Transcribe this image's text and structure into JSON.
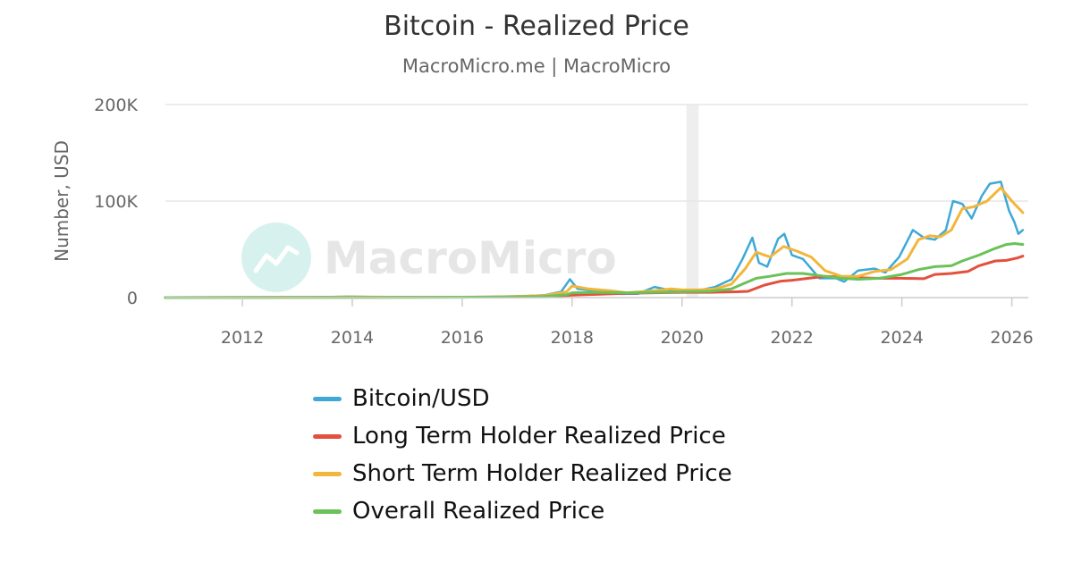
{
  "title": "Bitcoin - Realized Price",
  "subtitle": "MacroMicro.me | MacroMicro",
  "watermark": "MacroMicro",
  "colors": {
    "btc": "#3ea9d6",
    "lth": "#e3503e",
    "sth": "#f2b63c",
    "overall": "#6ac259",
    "grid": "#e6e6e6",
    "band": "#eeeeee"
  },
  "chart_data": {
    "type": "line",
    "ylabel": "Number, USD",
    "ylim": [
      0,
      200000
    ],
    "y_ticks": [
      0,
      100000,
      200000
    ],
    "y_tick_labels": [
      "0",
      "100K",
      "200K"
    ],
    "xlim": [
      2010.6,
      2026.3
    ],
    "x_ticks": [
      2012,
      2014,
      2016,
      2018,
      2020,
      2022,
      2024,
      2026
    ],
    "x_tick_labels": [
      "2012",
      "2014",
      "2016",
      "2018",
      "2020",
      "2022",
      "2024",
      "2026"
    ],
    "shaded_band": [
      2020.08,
      2020.3
    ],
    "series": [
      {
        "name": "Bitcoin/USD",
        "key": "btc",
        "points": [
          [
            2010.6,
            0
          ],
          [
            2013.3,
            200
          ],
          [
            2013.9,
            1000
          ],
          [
            2014.5,
            600
          ],
          [
            2015.5,
            250
          ],
          [
            2016.5,
            600
          ],
          [
            2017.0,
            1000
          ],
          [
            2017.5,
            2500
          ],
          [
            2017.8,
            6000
          ],
          [
            2017.96,
            19000
          ],
          [
            2018.1,
            9000
          ],
          [
            2018.5,
            6500
          ],
          [
            2018.9,
            3800
          ],
          [
            2019.2,
            4000
          ],
          [
            2019.5,
            11000
          ],
          [
            2019.75,
            8000
          ],
          [
            2020.0,
            7500
          ],
          [
            2020.2,
            6000
          ],
          [
            2020.6,
            11000
          ],
          [
            2020.9,
            19000
          ],
          [
            2021.1,
            40000
          ],
          [
            2021.28,
            62000
          ],
          [
            2021.4,
            36000
          ],
          [
            2021.55,
            32000
          ],
          [
            2021.75,
            61000
          ],
          [
            2021.86,
            66000
          ],
          [
            2022.0,
            44000
          ],
          [
            2022.2,
            40000
          ],
          [
            2022.35,
            30000
          ],
          [
            2022.5,
            20000
          ],
          [
            2022.8,
            20000
          ],
          [
            2022.95,
            16500
          ],
          [
            2023.2,
            28000
          ],
          [
            2023.5,
            30000
          ],
          [
            2023.7,
            26000
          ],
          [
            2023.95,
            42000
          ],
          [
            2024.2,
            70000
          ],
          [
            2024.4,
            62000
          ],
          [
            2024.6,
            60000
          ],
          [
            2024.8,
            70000
          ],
          [
            2024.93,
            100000
          ],
          [
            2025.1,
            97000
          ],
          [
            2025.27,
            82000
          ],
          [
            2025.45,
            105000
          ],
          [
            2025.6,
            118000
          ],
          [
            2025.8,
            120000
          ],
          [
            2025.95,
            90000
          ],
          [
            2026.05,
            78000
          ],
          [
            2026.12,
            66000
          ],
          [
            2026.2,
            70000
          ]
        ]
      },
      {
        "name": "Long Term Holder Realized Price",
        "key": "lth",
        "points": [
          [
            2010.6,
            0
          ],
          [
            2014.0,
            300
          ],
          [
            2016.0,
            500
          ],
          [
            2017.5,
            800
          ],
          [
            2018.0,
            2500
          ],
          [
            2018.5,
            3500
          ],
          [
            2019.0,
            4500
          ],
          [
            2019.5,
            5000
          ],
          [
            2020.0,
            5500
          ],
          [
            2020.5,
            5500
          ],
          [
            2021.0,
            6000
          ],
          [
            2021.2,
            6500
          ],
          [
            2021.5,
            13000
          ],
          [
            2021.8,
            17000
          ],
          [
            2022.0,
            18000
          ],
          [
            2022.3,
            20000
          ],
          [
            2022.6,
            22000
          ],
          [
            2023.0,
            21000
          ],
          [
            2023.5,
            20000
          ],
          [
            2024.0,
            20000
          ],
          [
            2024.4,
            19500
          ],
          [
            2024.6,
            24000
          ],
          [
            2024.9,
            25000
          ],
          [
            2025.2,
            27000
          ],
          [
            2025.4,
            33000
          ],
          [
            2025.7,
            38000
          ],
          [
            2025.9,
            38500
          ],
          [
            2026.1,
            41000
          ],
          [
            2026.2,
            43000
          ]
        ]
      },
      {
        "name": "Short Term Holder Realized Price",
        "key": "sth",
        "points": [
          [
            2010.6,
            0
          ],
          [
            2013.5,
            300
          ],
          [
            2014.0,
            700
          ],
          [
            2015.0,
            400
          ],
          [
            2016.5,
            600
          ],
          [
            2017.5,
            2000
          ],
          [
            2017.9,
            6000
          ],
          [
            2018.0,
            12000
          ],
          [
            2018.3,
            9000
          ],
          [
            2018.7,
            7000
          ],
          [
            2019.0,
            5000
          ],
          [
            2019.5,
            7000
          ],
          [
            2019.8,
            9000
          ],
          [
            2020.0,
            8000
          ],
          [
            2020.3,
            8000
          ],
          [
            2020.6,
            9000
          ],
          [
            2020.9,
            14000
          ],
          [
            2021.15,
            30000
          ],
          [
            2021.35,
            47000
          ],
          [
            2021.6,
            42000
          ],
          [
            2021.85,
            53000
          ],
          [
            2022.1,
            48000
          ],
          [
            2022.35,
            42000
          ],
          [
            2022.6,
            28000
          ],
          [
            2022.9,
            22000
          ],
          [
            2023.2,
            22000
          ],
          [
            2023.5,
            27000
          ],
          [
            2023.8,
            29000
          ],
          [
            2024.1,
            40000
          ],
          [
            2024.3,
            60000
          ],
          [
            2024.5,
            64000
          ],
          [
            2024.7,
            63000
          ],
          [
            2024.9,
            70000
          ],
          [
            2025.1,
            92000
          ],
          [
            2025.3,
            94000
          ],
          [
            2025.55,
            100000
          ],
          [
            2025.8,
            114000
          ],
          [
            2026.0,
            100000
          ],
          [
            2026.2,
            88000
          ]
        ]
      },
      {
        "name": "Overall Realized Price",
        "key": "overall",
        "points": [
          [
            2010.6,
            0
          ],
          [
            2014.0,
            200
          ],
          [
            2016.0,
            400
          ],
          [
            2017.5,
            1200
          ],
          [
            2017.9,
            3000
          ],
          [
            2018.0,
            5000
          ],
          [
            2018.5,
            5500
          ],
          [
            2019.0,
            5000
          ],
          [
            2019.5,
            5500
          ],
          [
            2020.0,
            6000
          ],
          [
            2020.5,
            6500
          ],
          [
            2020.9,
            9000
          ],
          [
            2021.1,
            14000
          ],
          [
            2021.35,
            20000
          ],
          [
            2021.6,
            22000
          ],
          [
            2021.9,
            25000
          ],
          [
            2022.2,
            25000
          ],
          [
            2022.6,
            22000
          ],
          [
            2022.9,
            20000
          ],
          [
            2023.2,
            19000
          ],
          [
            2023.6,
            20000
          ],
          [
            2024.0,
            24000
          ],
          [
            2024.3,
            29000
          ],
          [
            2024.6,
            32000
          ],
          [
            2024.9,
            33000
          ],
          [
            2025.1,
            38000
          ],
          [
            2025.4,
            44000
          ],
          [
            2025.7,
            51000
          ],
          [
            2025.9,
            55000
          ],
          [
            2026.05,
            56000
          ],
          [
            2026.2,
            55000
          ]
        ]
      }
    ]
  },
  "legend": [
    {
      "label": "Bitcoin/USD",
      "key": "btc"
    },
    {
      "label": "Long Term Holder Realized Price",
      "key": "lth"
    },
    {
      "label": "Short Term Holder Realized Price",
      "key": "sth"
    },
    {
      "label": "Overall Realized Price",
      "key": "overall"
    }
  ]
}
